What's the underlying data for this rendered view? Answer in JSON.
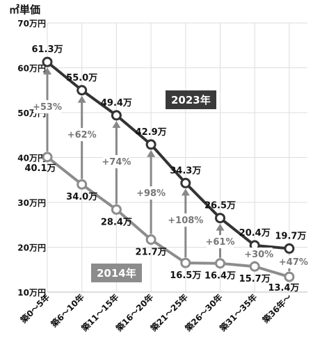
{
  "unit_label": "㎡単価",
  "chart_data": {
    "type": "line",
    "ylabel": "㎡単価",
    "ylim": [
      10,
      70
    ],
    "y_ticks": [
      {
        "value": 70,
        "label": "70万円"
      },
      {
        "value": 60,
        "label": "60万円"
      },
      {
        "value": 50,
        "label": "50万円"
      },
      {
        "value": 40,
        "label": "40万円"
      },
      {
        "value": 30,
        "label": "30万円"
      },
      {
        "value": 20,
        "label": "20万円"
      },
      {
        "value": 10,
        "label": "10万円"
      }
    ],
    "categories": [
      "築0～5年",
      "築6～10年",
      "築11～15年",
      "築16～20年",
      "築21～25年",
      "築26～30年",
      "築31～35年",
      "築36年～"
    ],
    "grid": true,
    "series": [
      {
        "name": "2023年",
        "color": "#333333",
        "values": [
          61.3,
          55.0,
          49.4,
          42.9,
          34.3,
          26.5,
          20.4,
          19.7
        ],
        "labels": [
          "61.3万",
          "55.0万",
          "49.4万",
          "42.9万",
          "34.3万",
          "26.5万",
          "20.4万",
          "19.7万"
        ]
      },
      {
        "name": "2014年",
        "color": "#8c8c8c",
        "values": [
          40.1,
          34.0,
          28.4,
          21.7,
          16.5,
          16.4,
          15.7,
          13.4
        ],
        "labels": [
          "40.1万",
          "34.0万",
          "28.4万",
          "21.7万",
          "16.5万",
          "16.4万",
          "15.7万",
          "13.4万"
        ]
      }
    ],
    "change_labels": [
      "+53%",
      "+62%",
      "+74%",
      "+98%",
      "+108%",
      "+61%",
      "+30%",
      "+47%"
    ]
  }
}
